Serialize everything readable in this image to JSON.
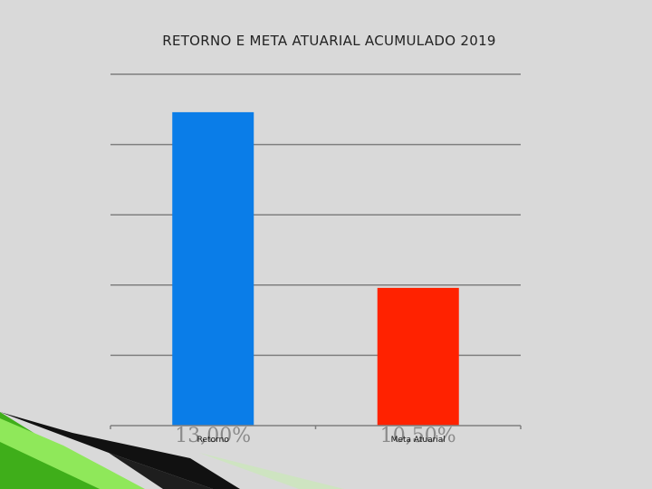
{
  "chart_data": {
    "type": "bar",
    "title": "RETORNO E META ATUARIAL ACUMULADO 2019",
    "categories": [
      "Retorno",
      "Meta Atuarial"
    ],
    "values": [
      13.0,
      10.5
    ],
    "data_labels": [
      "13,00%",
      "10,50%"
    ],
    "ylim": [
      8.54,
      13.54
    ],
    "grid": true,
    "legend": "none",
    "colors": [
      "#0a7de8",
      "#ff2200"
    ]
  },
  "decoration": {
    "accent_colors": [
      "#3fae1a",
      "#8fe85a",
      "#111111"
    ]
  }
}
